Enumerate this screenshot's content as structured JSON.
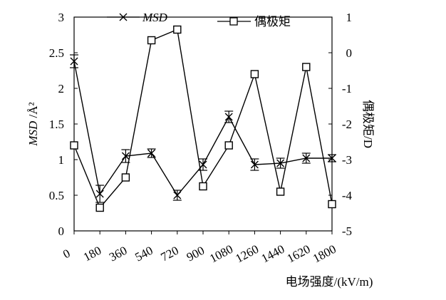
{
  "chart_data": {
    "type": "line",
    "x": [
      0,
      180,
      360,
      540,
      720,
      900,
      1080,
      1260,
      1440,
      1620,
      1800
    ],
    "x_tick_labels": [
      "0",
      "180",
      "360",
      "540",
      "720",
      "900",
      "1080",
      "1260",
      "1440",
      "1620",
      "1800"
    ],
    "xlabel": "电场强度/(kV/m)",
    "ylabel_left": "MSD /Å²",
    "ylabel_right": "偶极矩/D",
    "ylim_left": [
      0,
      3
    ],
    "ylim_right": [
      -5,
      1
    ],
    "y_left_ticks": [
      "0",
      "0.5",
      "1",
      "1.5",
      "2",
      "2.5",
      "3"
    ],
    "y_right_ticks": [
      "-5",
      "-4",
      "-3",
      "-2",
      "-1",
      "0",
      "1"
    ],
    "grid": false,
    "legend_position": "top",
    "series": [
      {
        "name": "MSD",
        "axis": "left",
        "marker": "x-cross",
        "values": [
          2.38,
          0.52,
          1.05,
          1.09,
          0.5,
          0.93,
          1.6,
          0.93,
          0.95,
          1.02,
          1.02
        ],
        "error": [
          0.09,
          0.12,
          0.09,
          0.06,
          0.07,
          0.08,
          0.08,
          0.08,
          0.07,
          0.07,
          0.05
        ]
      },
      {
        "name": "偶极矩",
        "axis": "right",
        "marker": "open-square",
        "values": [
          -2.6,
          -4.35,
          -3.5,
          0.35,
          0.65,
          -3.75,
          -2.6,
          -0.6,
          -3.9,
          -0.4,
          -4.25
        ]
      }
    ]
  }
}
